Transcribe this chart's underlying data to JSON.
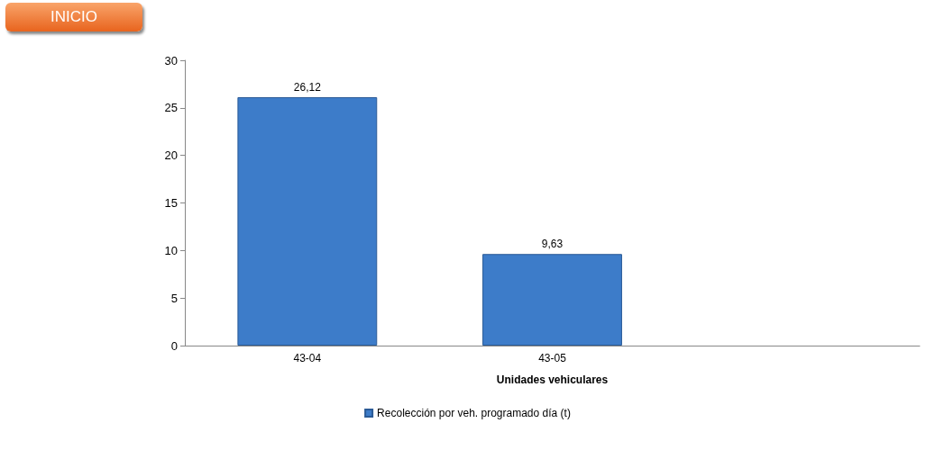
{
  "chart_data": {
    "type": "bar",
    "xlabel": "Unidades vehiculares",
    "annotations": [
      "INICIO"
    ],
    "categories": [
      "43-04",
      "43-05",
      null
    ],
    "series": [
      {
        "name": "Recolección por veh. programado día (t)",
        "color": "#3d7cc9",
        "values": [
          26.12,
          9.63,
          null
        ],
        "value_labels": [
          "26,12",
          "9,63",
          null
        ]
      }
    ],
    "ylim": [
      0,
      30
    ],
    "yticks": [
      0,
      5,
      10,
      15,
      20,
      25,
      30
    ],
    "grid": false,
    "legend": "bottom"
  }
}
